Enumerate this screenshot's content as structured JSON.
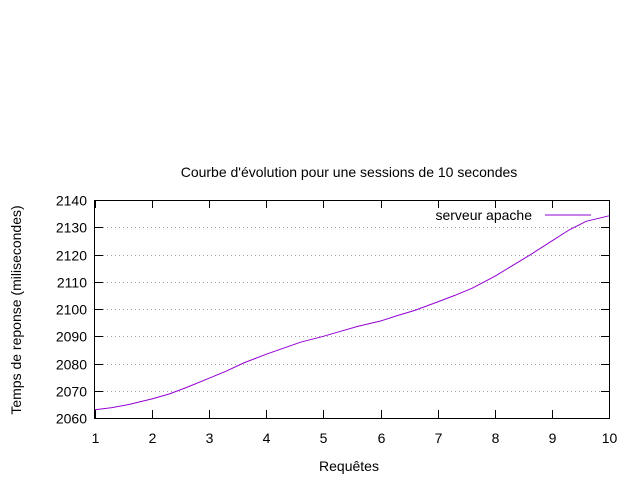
{
  "chart_data": {
    "type": "line",
    "title": "Courbe d'évolution pour une sessions de 10 secondes",
    "xlabel": "Requêtes",
    "ylabel": "Temps de reponse (milisecondes)",
    "xlim": [
      1,
      10
    ],
    "ylim": [
      2060,
      2140
    ],
    "xticks": [
      "1",
      "2",
      "3",
      "4",
      "5",
      "6",
      "7",
      "8",
      "9",
      "10"
    ],
    "yticks": [
      "2060",
      "2070",
      "2080",
      "2090",
      "2100",
      "2110",
      "2120",
      "2130",
      "2140"
    ],
    "grid": "horizontal-dotted",
    "legend_position": "top-right",
    "series": [
      {
        "name": "serveur apache",
        "color": "#9400d3",
        "x": [
          1,
          1.3,
          1.6,
          2,
          2.3,
          2.6,
          3,
          3.3,
          3.6,
          4,
          4.3,
          4.6,
          5,
          5.3,
          5.6,
          6,
          6.3,
          6.6,
          7,
          7.3,
          7.6,
          8,
          8.3,
          8.6,
          9,
          9.3,
          9.6,
          10
        ],
        "values": [
          2063,
          2063.8,
          2065,
          2067,
          2068.8,
          2071.2,
          2074.6,
          2077.2,
          2080.2,
          2083.4,
          2085.6,
          2087.8,
          2090,
          2091.8,
          2093.6,
          2095.6,
          2097.6,
          2099.5,
          2102.6,
          2105,
          2107.6,
          2112,
          2115.8,
          2119.6,
          2125,
          2129,
          2132.2,
          2134.2
        ]
      }
    ]
  }
}
